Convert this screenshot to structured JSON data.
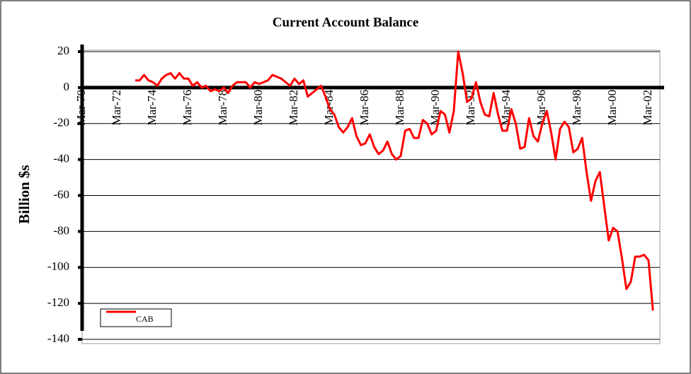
{
  "chart_data": {
    "type": "line",
    "title": "Current Account Balance",
    "ylabel": "Billion $s",
    "categories": [
      "Mar-70",
      null,
      null,
      null,
      null,
      null,
      null,
      null,
      "Mar-72",
      null,
      null,
      null,
      null,
      null,
      null,
      null,
      "Mar-74",
      null,
      null,
      null,
      null,
      null,
      null,
      null,
      "Mar-76",
      null,
      null,
      null,
      null,
      null,
      null,
      null,
      "Mar-78",
      null,
      null,
      null,
      null,
      null,
      null,
      null,
      "Mar-80",
      null,
      null,
      null,
      null,
      null,
      null,
      null,
      "Mar-82",
      null,
      null,
      null,
      null,
      null,
      null,
      null,
      "Mar-84",
      null,
      null,
      null,
      null,
      null,
      null,
      null,
      "Mar-86",
      null,
      null,
      null,
      null,
      null,
      null,
      null,
      "Mar-88",
      null,
      null,
      null,
      null,
      null,
      null,
      null,
      "Mar-90",
      null,
      null,
      null,
      null,
      null,
      null,
      null,
      "Mar-92",
      null,
      null,
      null,
      null,
      null,
      null,
      null,
      "Mar-94",
      null,
      null,
      null,
      null,
      null,
      null,
      null,
      "Mar-96",
      null,
      null,
      null,
      null,
      null,
      null,
      null,
      "Mar-98",
      null,
      null,
      null,
      null,
      null,
      null,
      null,
      "Mar-00",
      null,
      null,
      null,
      null,
      null,
      null,
      null,
      "Mar-02",
      null
    ],
    "series": [
      {
        "name": "CAB",
        "color": "#ff0000",
        "values": [
          null,
          null,
          null,
          null,
          null,
          null,
          null,
          null,
          null,
          null,
          null,
          null,
          4,
          4,
          7,
          4,
          3,
          1,
          5,
          7,
          8,
          5,
          8,
          5,
          5,
          1,
          3,
          0,
          1,
          -2,
          -1,
          -2,
          0,
          -3,
          1,
          3,
          3,
          3,
          0,
          3,
          2,
          3,
          4,
          7,
          6,
          5,
          3,
          1,
          5,
          2,
          4,
          -5,
          -3,
          -1,
          1,
          -5,
          -12,
          -15,
          -22,
          -25,
          -22,
          -17,
          -27,
          -32,
          -31,
          -26,
          -33,
          -37,
          -35,
          -30,
          -37,
          -40,
          -38,
          -24,
          -23,
          -28,
          -28,
          -18,
          -20,
          -26,
          -24,
          -13,
          -15,
          -25,
          -13,
          20,
          8,
          -8,
          -6,
          3,
          -8,
          -15,
          -16,
          -3,
          -15,
          -24,
          -24,
          -12,
          -20,
          -34,
          -33,
          -17,
          -27,
          -30,
          -20,
          -13,
          -25,
          -40,
          -23,
          -19,
          -22,
          -36,
          -34,
          -28,
          -47,
          -63,
          -52,
          -47,
          -66,
          -85,
          -78,
          -80,
          -95,
          -112,
          -108,
          -94,
          -94,
          -93,
          -96,
          -124
        ]
      }
    ],
    "ylim": [
      -140,
      20
    ],
    "yticks": [
      -140,
      -120,
      -100,
      -80,
      -60,
      -40,
      -20,
      0,
      20
    ],
    "grid": true,
    "legend": "lower left"
  }
}
